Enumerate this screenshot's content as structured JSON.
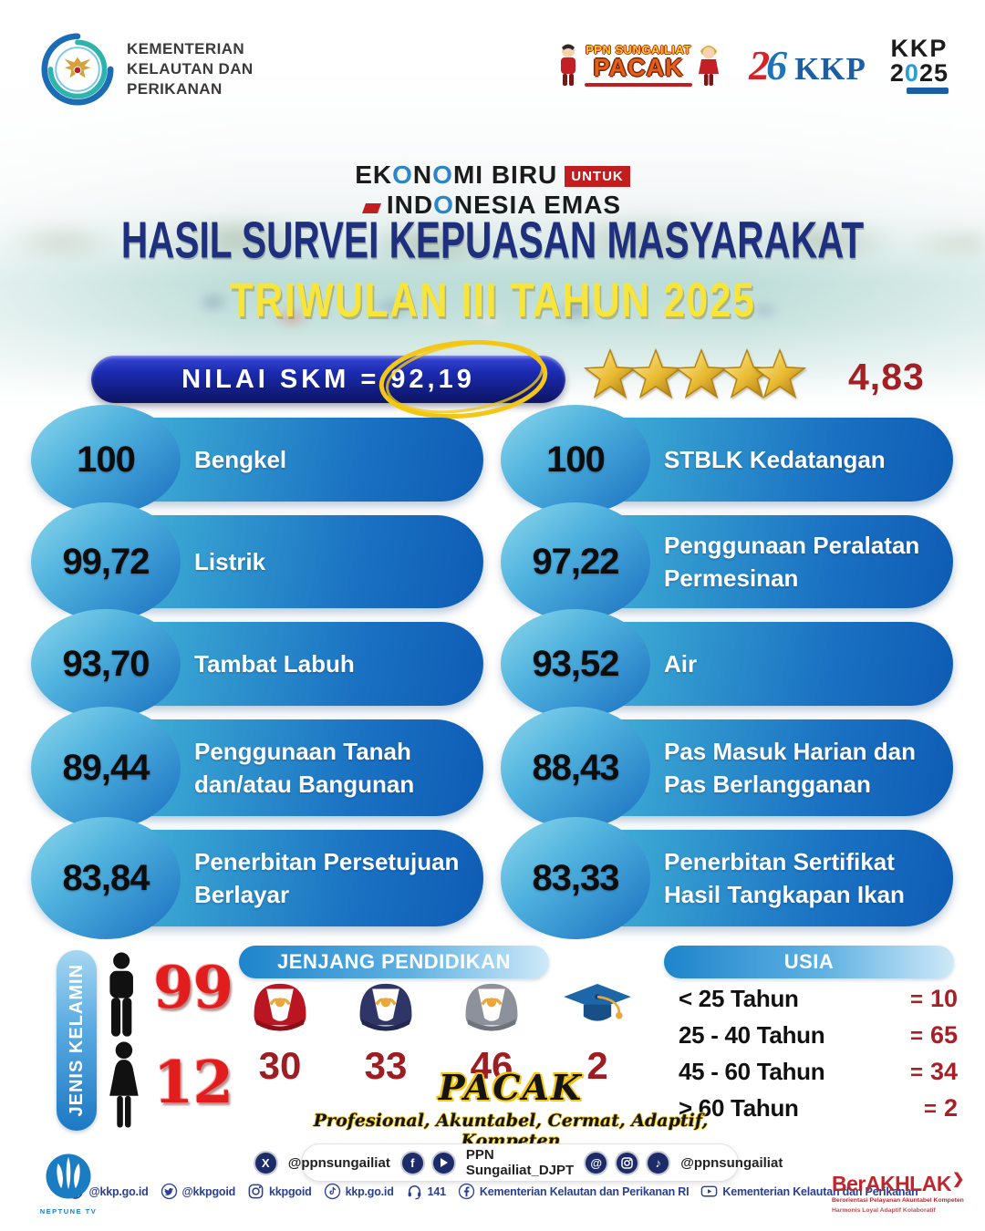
{
  "colors": {
    "card_gradient_start": "#5ec7da",
    "card_gradient_end": "#0e5cb5",
    "badge_cream": "#fbf3e2",
    "skm_pill_blue": "#101a70",
    "title_blue": "#1e2f7d",
    "title_yellow": "#f8e53a",
    "accent_red": "#c2292e",
    "stat_red": "#9e1d22",
    "footer_blue": "#2a3f8f",
    "star_gold": "#e8b931"
  },
  "header": {
    "ministry_lines": [
      "KEMENTERIAN",
      "KELAUTAN DAN",
      "PERIKANAN"
    ],
    "pacak_logo_top": "PPN SUNGAILIAT",
    "pacak_logo_main": "PACAK",
    "kkp26_number_2": "2",
    "kkp26_number_6": "6",
    "kkp26_label": "KKP",
    "kkp2025_line1": "KKP",
    "kkp2025_line2_a": "2",
    "kkp2025_line2_zero": "0",
    "kkp2025_line2_b": "25"
  },
  "branding": {
    "line1": "EKONOMI BIRU",
    "untuk": "UNTUK",
    "line2": "INDONESIA EMAS"
  },
  "title": {
    "line1": "HASIL SURVEI KEPUASAN MASYARAKAT",
    "line2": "TRIWULAN III TAHUN 2025"
  },
  "skm": {
    "label": "NILAI SKM",
    "equals": "=",
    "value": "92,19",
    "stars": 5,
    "rating": "4,83"
  },
  "scores": [
    {
      "value": "100",
      "label": "Bengkel"
    },
    {
      "value": "100",
      "label": "STBLK Kedatangan"
    },
    {
      "value": "99,72",
      "label": "Listrik"
    },
    {
      "value": "97,22",
      "label": "Penggunaan Peralatan Permesinan"
    },
    {
      "value": "93,70",
      "label": "Tambat Labuh"
    },
    {
      "value": "93,52",
      "label": "Air"
    },
    {
      "value": "89,44",
      "label": "Penggunaan Tanah dan/atau Bangunan"
    },
    {
      "value": "88,43",
      "label": "Pas Masuk Harian dan Pas Berlangganan"
    },
    {
      "value": "83,84",
      "label": "Penerbitan Persetujuan Berlayar"
    },
    {
      "value": "83,33",
      "label": "Penerbitan Sertifikat Hasil Tangkapan Ikan"
    }
  ],
  "gender": {
    "header": "JENIS KELAMIN",
    "male_count": "99",
    "female_count": "12"
  },
  "education": {
    "header": "JENJANG PENDIDIKAN",
    "items": [
      {
        "icon": "cap-red-icon",
        "value": "30"
      },
      {
        "icon": "cap-navy-icon",
        "value": "33"
      },
      {
        "icon": "cap-gray-icon",
        "value": "46"
      },
      {
        "icon": "mortarboard-icon",
        "value": "2"
      }
    ]
  },
  "age": {
    "header": "USIA",
    "rows": [
      {
        "label": "< 25 Tahun",
        "value": "10"
      },
      {
        "label": "25 - 40 Tahun",
        "value": "65"
      },
      {
        "label": "45 - 60 Tahun",
        "value": "34"
      },
      {
        "label": "> 60 Tahun",
        "value": "2"
      }
    ]
  },
  "pacak": {
    "title": "PACAK",
    "tagline": "Profesional, Akuntabel, Cermat, Adaptif, Kompeten"
  },
  "social": {
    "x_handle": "@ppnsungailiat",
    "fb_yt_handle": "PPN Sungailiat_DJPT",
    "ig_handle": "@ppnsungailiat"
  },
  "footer": {
    "items": [
      {
        "icon": "globe-icon",
        "label": "@kkp.go.id"
      },
      {
        "icon": "twitter-icon",
        "label": "@kkpgoid"
      },
      {
        "icon": "instagram-icon",
        "label": "kkpgoid"
      },
      {
        "icon": "tiktok-icon",
        "label": "kkp.go.id"
      },
      {
        "icon": "headset-icon",
        "label": "141"
      },
      {
        "icon": "facebook-icon",
        "label": "Kementerian Kelautan dan Perikanan RI"
      },
      {
        "icon": "youtube-icon",
        "label": "Kementerian Kelautan dan Perikanan"
      }
    ]
  },
  "neptune_label": "NEPTUNE TV",
  "berakhlak": {
    "title": "BerAKHLAK",
    "line1": "Berorientasi Pelayanan Akuntabel Kompeten",
    "line2": "Harmonis Loyal Adaptif Kolaboratif"
  }
}
